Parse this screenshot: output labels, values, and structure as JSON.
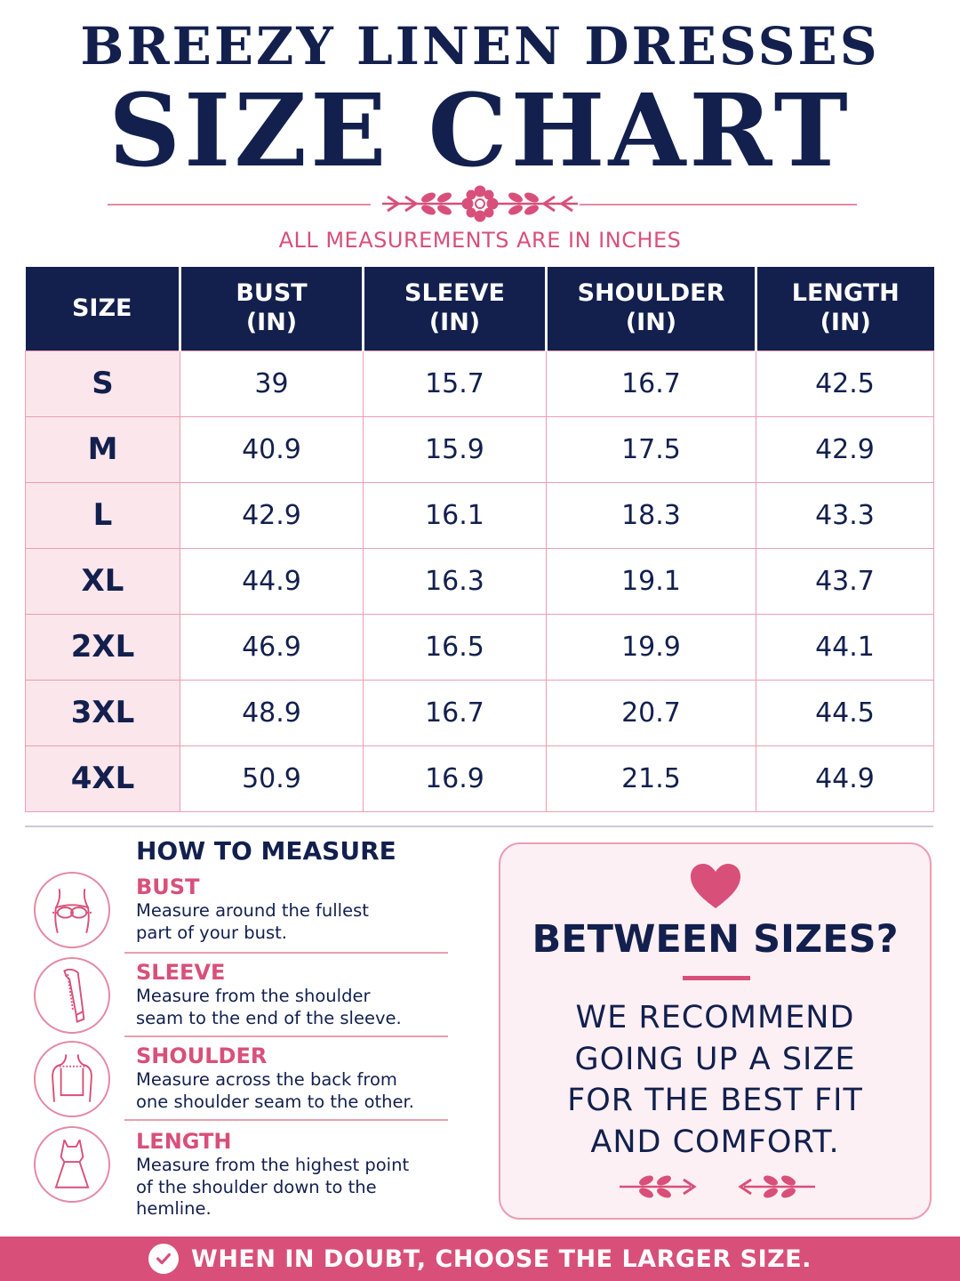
{
  "header": {
    "brand": "BREEZY LINEN DRESSES",
    "title": "SIZE CHART",
    "subtitle": "ALL MEASUREMENTS ARE IN INCHES"
  },
  "table": {
    "headers": [
      {
        "line1": "SIZE",
        "line2": ""
      },
      {
        "line1": "BUST",
        "line2": "(IN)"
      },
      {
        "line1": "SLEEVE",
        "line2": "(IN)"
      },
      {
        "line1": "SHOULDER",
        "line2": "(IN)"
      },
      {
        "line1": "LENGTH",
        "line2": "(IN)"
      }
    ],
    "rows": [
      [
        "S",
        "39",
        "15.7",
        "16.7",
        "42.5"
      ],
      [
        "M",
        "40.9",
        "15.9",
        "17.5",
        "42.9"
      ],
      [
        "L",
        "42.9",
        "16.1",
        "18.3",
        "43.3"
      ],
      [
        "XL",
        "44.9",
        "16.3",
        "19.1",
        "43.7"
      ],
      [
        "2XL",
        "46.9",
        "16.5",
        "19.9",
        "44.1"
      ],
      [
        "3XL",
        "48.9",
        "16.7",
        "20.7",
        "44.5"
      ],
      [
        "4XL",
        "50.9",
        "16.9",
        "21.5",
        "44.9"
      ]
    ]
  },
  "how_to_measure": {
    "title": "HOW TO MEASURE",
    "items": [
      {
        "icon": "bust-icon",
        "label": "BUST",
        "desc_lines": [
          "Measure around the fullest",
          "part of your bust."
        ]
      },
      {
        "icon": "sleeve-icon",
        "label": "SLEEVE",
        "desc_lines": [
          "Measure from the shoulder",
          "seam to the end of the sleeve."
        ]
      },
      {
        "icon": "shoulder-icon",
        "label": "SHOULDER",
        "desc_lines": [
          "Measure across the back from",
          "one shoulder seam to the other."
        ]
      },
      {
        "icon": "dress-icon",
        "label": "LENGTH",
        "desc_lines": [
          "Measure from the highest point",
          "of the shoulder down to the",
          "hemline."
        ]
      }
    ]
  },
  "tip": {
    "icon": "heart-icon",
    "heading": "BETWEEN SIZES?",
    "lines": [
      "WE RECOMMEND",
      "GOING UP A SIZE",
      "FOR THE BEST FIT",
      "AND COMFORT."
    ]
  },
  "footer": {
    "icon": "check-circle-icon",
    "text": "WHEN IN DOUBT, CHOOSE THE LARGER SIZE."
  },
  "colors": {
    "navy": "#13204e",
    "pink": "#d8507a",
    "light_pink": "#fbe6ec",
    "border_pink": "#ec9db2"
  }
}
